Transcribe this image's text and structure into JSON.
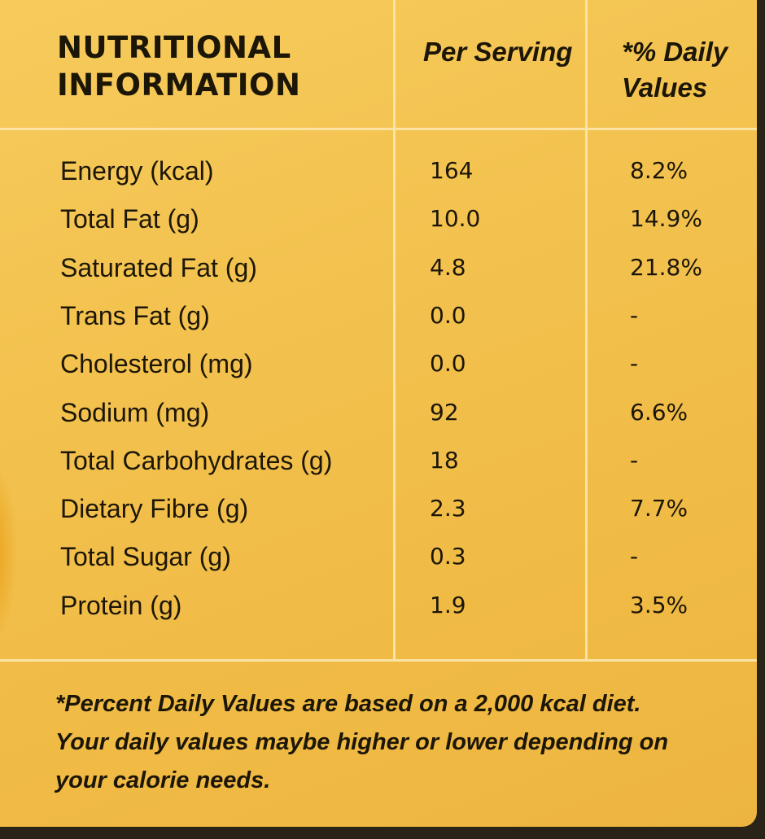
{
  "header": {
    "title_line1": "NUTRITIONAL",
    "title_line2": "INFORMATION",
    "per_serving": "Per Serving",
    "daily_line1": "*% Daily",
    "daily_line2": "Values"
  },
  "rows": [
    {
      "nutrient": "Energy (kcal)",
      "per_serving": "164",
      "daily_value": "8.2%"
    },
    {
      "nutrient": "Total Fat (g)",
      "per_serving": "10.0",
      "daily_value": "14.9%"
    },
    {
      "nutrient": "Saturated Fat (g)",
      "per_serving": "4.8",
      "daily_value": "21.8%"
    },
    {
      "nutrient": "Trans Fat (g)",
      "per_serving": "0.0",
      "daily_value": "-"
    },
    {
      "nutrient": "Cholesterol (mg)",
      "per_serving": "0.0",
      "daily_value": "-"
    },
    {
      "nutrient": "Sodium (mg)",
      "per_serving": "92",
      "daily_value": "6.6%"
    },
    {
      "nutrient": "Total Carbohydrates (g)",
      "per_serving": "18",
      "daily_value": "-"
    },
    {
      "nutrient": "Dietary Fibre (g)",
      "per_serving": "2.3",
      "daily_value": "7.7%"
    },
    {
      "nutrient": "Total Sugar (g)",
      "per_serving": "0.3",
      "daily_value": "-"
    },
    {
      "nutrient": "Protein (g)",
      "per_serving": "1.9",
      "daily_value": "3.5%"
    }
  ],
  "footnote": {
    "line1": "*Percent Daily Values are based on a 2,000 kcal diet.",
    "line2": "Your daily values maybe higher or lower depending on",
    "line3": "your calorie needs."
  },
  "colors": {
    "panel": "#f3c24f",
    "lines": "#fbe3a4",
    "text": "#1c1607"
  }
}
